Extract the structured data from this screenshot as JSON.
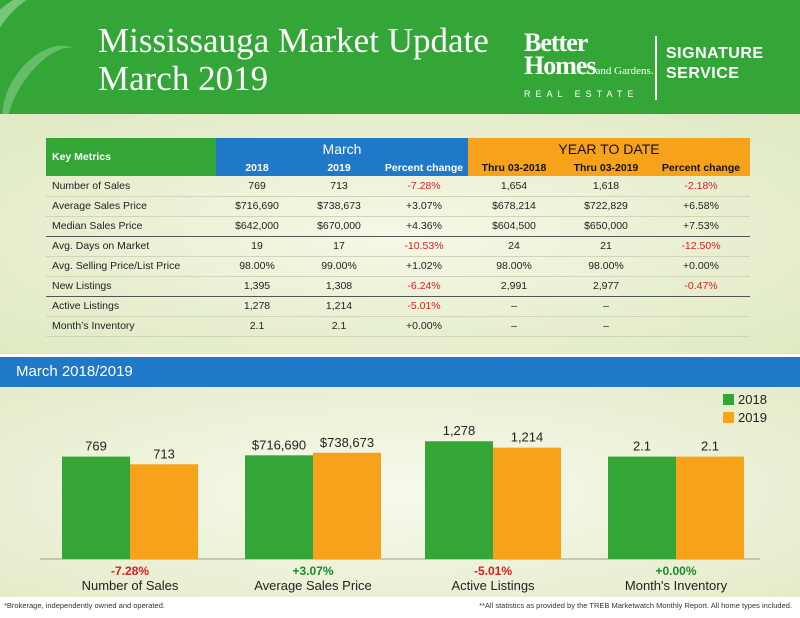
{
  "header": {
    "title_line1": "Mississauga Market Update",
    "title_line2": "March 2019",
    "brand_line1": "Better",
    "brand_line2": "Homes",
    "brand_line2_small": "and Gardens.",
    "brand_line3": "REAL ESTATE",
    "signature_line1": "SIGNATURE",
    "signature_line2": "SERVICE"
  },
  "table": {
    "caption": "Key Metrics",
    "group_march": "March",
    "group_ytd": "YEAR TO DATE",
    "columns": [
      "2018",
      "2019",
      "Percent change",
      "Thru 03-2018",
      "Thru 03-2019",
      "Percent change"
    ],
    "rows": [
      {
        "label": "Number of Sales",
        "values": [
          "769",
          "713",
          "-7.28%",
          "1,654",
          "1,618",
          "-2.18%"
        ]
      },
      {
        "label": "Average Sales Price",
        "values": [
          "$716,690",
          "$738,673",
          "+3.07%",
          "$678,214",
          "$722,829",
          "+6.58%"
        ]
      },
      {
        "label": "Median Sales Price",
        "values": [
          "$642,000",
          "$670,000",
          "+4.36%",
          "$604,500",
          "$650,000",
          "+7.53%"
        ]
      },
      {
        "label": "Avg. Days on Market",
        "values": [
          "19",
          "17",
          "-10.53%",
          "24",
          "21",
          "-12.50%"
        ]
      },
      {
        "label": "Avg. Selling Price/List Price",
        "values": [
          "98.00%",
          "99.00%",
          "+1.02%",
          "98.00%",
          "98.00%",
          "+0.00%"
        ]
      },
      {
        "label": "New Listings",
        "values": [
          "1,395",
          "1,308",
          "-6.24%",
          "2,991",
          "2,977",
          "-0.47%"
        ]
      },
      {
        "label": "Active Listings",
        "values": [
          "1,278",
          "1,214",
          "-5.01%",
          "–",
          "–",
          ""
        ]
      },
      {
        "label": "Month’s Inventory",
        "values": [
          "2.1",
          "2.1",
          "+0.00%",
          "–",
          "–",
          ""
        ]
      }
    ]
  },
  "section_title": "March 2018/2019",
  "chart_data": {
    "type": "bar",
    "categories": [
      "Number of Sales",
      "Average Sales Price",
      "Active Listings",
      "Month's Inventory"
    ],
    "series": [
      {
        "name": "2018",
        "labels": [
          "769",
          "$716,690",
          "1,278",
          "2.1"
        ],
        "heights": [
          0.8,
          0.81,
          0.92,
          0.8
        ]
      },
      {
        "name": "2019",
        "labels": [
          "713",
          "$738,673",
          "1,214",
          "2.1"
        ],
        "heights": [
          0.74,
          0.83,
          0.87,
          0.8
        ]
      }
    ],
    "changes": [
      "-7.28%",
      "+3.07%",
      "-5.01%",
      "+0.00%"
    ],
    "legend_position": "top-right",
    "colors": {
      "2018": "#33a637",
      "2019": "#f7a21b",
      "negative": "#d42020",
      "neutral": "#1b8a2a"
    }
  },
  "footer": {
    "left": "*Brokerage, independently owned and operated.",
    "right": "**All statistics as provided by the TREB Marketwatch Monthly Report. All home types included."
  }
}
